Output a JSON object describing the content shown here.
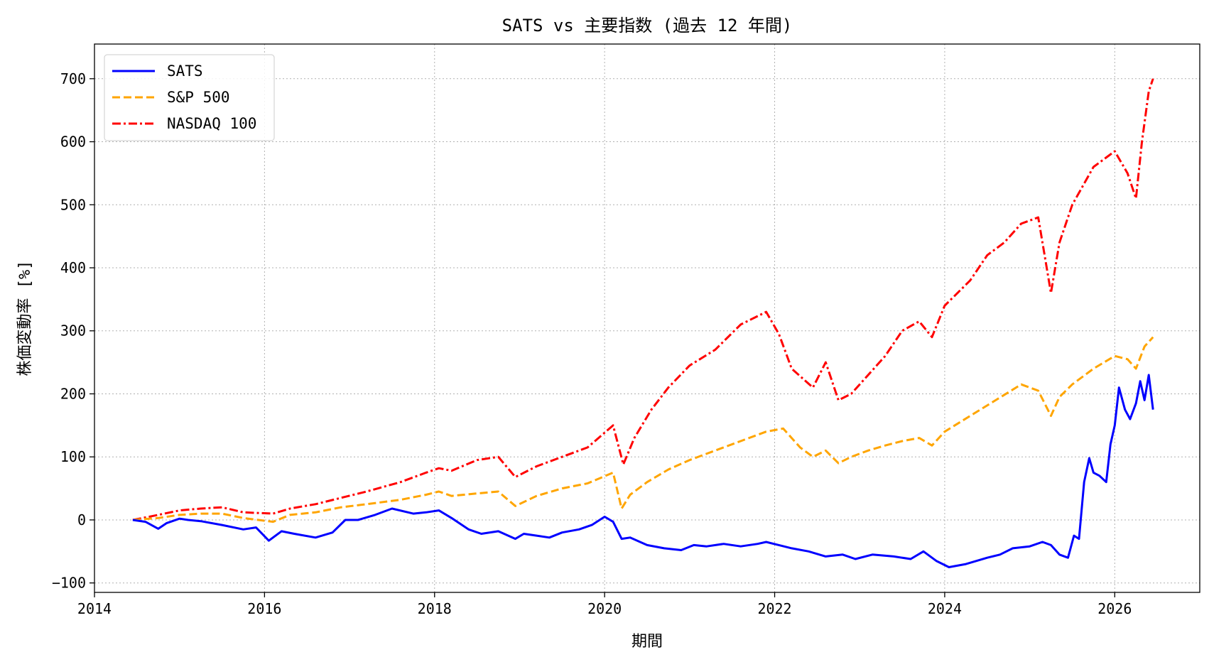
{
  "chart_data": {
    "type": "line",
    "title": "SATS vs 主要指数 (過去 12 年間)",
    "xlabel": "期間",
    "ylabel": "株価変動率 [%]",
    "xlim": [
      2014.0,
      2027.0
    ],
    "ylim": [
      -115,
      755
    ],
    "x_ticks": [
      2014,
      2016,
      2018,
      2020,
      2022,
      2024,
      2026
    ],
    "x_tick_labels": [
      "2014",
      "2016",
      "2018",
      "2020",
      "2022",
      "2024",
      "2026"
    ],
    "y_ticks": [
      -100,
      0,
      100,
      200,
      300,
      400,
      500,
      600,
      700
    ],
    "y_tick_labels": [
      "−100",
      "0",
      "100",
      "200",
      "300",
      "400",
      "500",
      "600",
      "700"
    ],
    "grid": true,
    "legend_position": "top-left",
    "series": [
      {
        "name": "SATS",
        "color": "#0000ff",
        "style": "solid",
        "x": [
          2014.45,
          2014.6,
          2014.75,
          2014.85,
          2015.0,
          2015.1,
          2015.25,
          2015.5,
          2015.75,
          2015.9,
          2016.05,
          2016.2,
          2016.35,
          2016.6,
          2016.8,
          2016.95,
          2017.1,
          2017.3,
          2017.5,
          2017.75,
          2017.9,
          2018.05,
          2018.2,
          2018.4,
          2018.55,
          2018.75,
          2018.95,
          2019.05,
          2019.2,
          2019.35,
          2019.5,
          2019.7,
          2019.85,
          2020.0,
          2020.1,
          2020.2,
          2020.3,
          2020.5,
          2020.7,
          2020.9,
          2021.05,
          2021.2,
          2021.4,
          2021.6,
          2021.8,
          2021.9,
          2022.05,
          2022.2,
          2022.4,
          2022.6,
          2022.8,
          2022.95,
          2023.15,
          2023.4,
          2023.6,
          2023.75,
          2023.9,
          2024.05,
          2024.25,
          2024.5,
          2024.65,
          2024.8,
          2025.0,
          2025.15,
          2025.25,
          2025.35,
          2025.45,
          2025.52,
          2025.58,
          2025.64,
          2025.7,
          2025.75,
          2025.82,
          2025.9,
          2025.95,
          2026.0,
          2026.05,
          2026.12,
          2026.18,
          2026.25,
          2026.3,
          2026.35,
          2026.4,
          2026.45
        ],
        "values": [
          0,
          -3,
          -14,
          -5,
          2,
          0,
          -2,
          -8,
          -15,
          -12,
          -33,
          -18,
          -22,
          -28,
          -20,
          0,
          0,
          8,
          18,
          10,
          12,
          15,
          3,
          -15,
          -22,
          -18,
          -30,
          -22,
          -25,
          -28,
          -20,
          -15,
          -8,
          5,
          -3,
          -30,
          -28,
          -40,
          -45,
          -48,
          -40,
          -42,
          -38,
          -42,
          -38,
          -35,
          -40,
          -45,
          -50,
          -58,
          -55,
          -62,
          -55,
          -58,
          -62,
          -50,
          -65,
          -75,
          -70,
          -60,
          -55,
          -45,
          -42,
          -35,
          -40,
          -55,
          -60,
          -25,
          -30,
          60,
          98,
          75,
          70,
          60,
          120,
          150,
          210,
          175,
          160,
          185,
          220,
          190,
          230,
          175
        ]
      },
      {
        "name": "S&P 500",
        "color": "#ffa500",
        "style": "dashed",
        "x": [
          2014.45,
          2014.75,
          2015.0,
          2015.25,
          2015.5,
          2015.75,
          2016.1,
          2016.3,
          2016.6,
          2016.9,
          2017.2,
          2017.6,
          2017.9,
          2018.05,
          2018.2,
          2018.5,
          2018.75,
          2018.95,
          2019.2,
          2019.5,
          2019.8,
          2020.1,
          2020.2,
          2020.3,
          2020.5,
          2020.75,
          2021.0,
          2021.3,
          2021.6,
          2021.9,
          2022.1,
          2022.3,
          2022.45,
          2022.6,
          2022.75,
          2022.9,
          2023.1,
          2023.3,
          2023.5,
          2023.7,
          2023.85,
          2024.0,
          2024.3,
          2024.6,
          2024.9,
          2025.1,
          2025.25,
          2025.35,
          2025.5,
          2025.75,
          2026.0,
          2026.15,
          2026.25,
          2026.35,
          2026.45
        ],
        "values": [
          0,
          3,
          8,
          10,
          10,
          3,
          -3,
          8,
          12,
          20,
          25,
          32,
          40,
          45,
          38,
          42,
          45,
          22,
          38,
          50,
          58,
          75,
          18,
          40,
          60,
          80,
          95,
          110,
          125,
          140,
          145,
          115,
          100,
          110,
          90,
          100,
          110,
          118,
          125,
          130,
          118,
          140,
          165,
          190,
          215,
          205,
          165,
          195,
          215,
          240,
          260,
          255,
          240,
          275,
          290
        ]
      },
      {
        "name": "NASDAQ 100",
        "color": "#ff0000",
        "style": "dashdot",
        "x": [
          2014.45,
          2014.75,
          2015.0,
          2015.25,
          2015.5,
          2015.75,
          2016.1,
          2016.3,
          2016.6,
          2016.9,
          2017.2,
          2017.6,
          2017.9,
          2018.05,
          2018.2,
          2018.5,
          2018.75,
          2018.95,
          2019.2,
          2019.5,
          2019.8,
          2020.1,
          2020.22,
          2020.35,
          2020.55,
          2020.75,
          2021.0,
          2021.3,
          2021.6,
          2021.9,
          2022.05,
          2022.2,
          2022.45,
          2022.6,
          2022.75,
          2022.9,
          2023.1,
          2023.3,
          2023.5,
          2023.7,
          2023.85,
          2024.0,
          2024.3,
          2024.5,
          2024.7,
          2024.9,
          2025.1,
          2025.25,
          2025.35,
          2025.5,
          2025.75,
          2026.0,
          2026.15,
          2026.25,
          2026.32,
          2026.4,
          2026.45
        ],
        "values": [
          0,
          8,
          15,
          18,
          20,
          12,
          10,
          18,
          25,
          35,
          45,
          60,
          75,
          82,
          78,
          95,
          100,
          68,
          85,
          100,
          115,
          150,
          88,
          130,
          175,
          210,
          245,
          270,
          310,
          330,
          295,
          240,
          210,
          250,
          190,
          200,
          230,
          260,
          300,
          315,
          290,
          340,
          380,
          420,
          440,
          470,
          480,
          360,
          440,
          500,
          560,
          585,
          550,
          510,
          600,
          680,
          700
        ]
      }
    ]
  }
}
